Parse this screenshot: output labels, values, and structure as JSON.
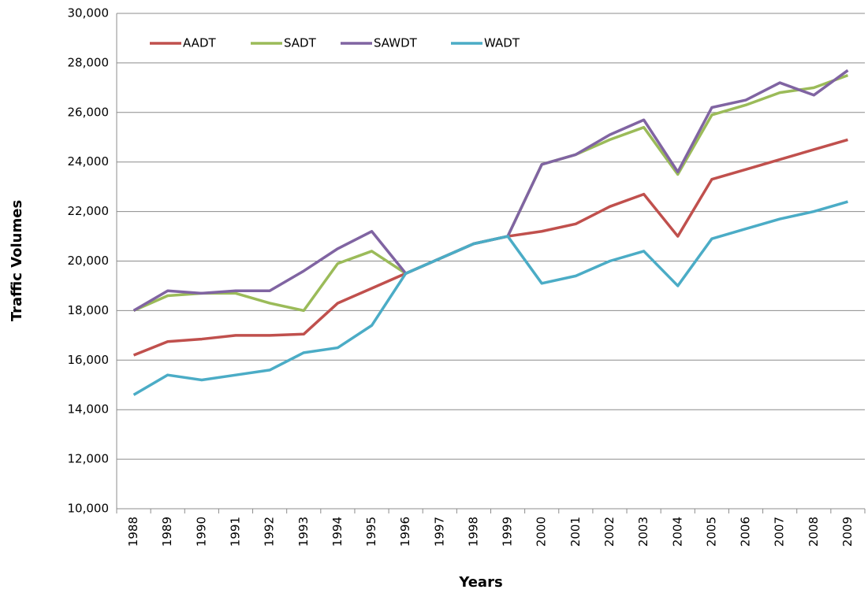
{
  "chart_data": {
    "type": "line",
    "y_label": "Traffic Volumes",
    "x_label": "Years",
    "categories": [
      "1988",
      "1989",
      "1990",
      "1991",
      "1992",
      "1993",
      "1994",
      "1995",
      "1996",
      "1997",
      "1998",
      "1999",
      "2000",
      "2001",
      "2002",
      "2003",
      "2004",
      "2005",
      "2006",
      "2007",
      "2008",
      "2009"
    ],
    "series": [
      {
        "name": "AADT",
        "color": "#c0504d",
        "values": [
          16200,
          16750,
          16850,
          17000,
          17000,
          17050,
          18300,
          18900,
          19500,
          20100,
          20700,
          21000,
          21200,
          21500,
          22200,
          22700,
          21000,
          23300,
          23700,
          24100,
          24500,
          24900
        ]
      },
      {
        "name": "SADT",
        "color": "#9bbb59",
        "values": [
          18000,
          18600,
          18700,
          18700,
          18300,
          18000,
          19900,
          20400,
          19500,
          20100,
          20700,
          21000,
          23900,
          24300,
          24900,
          25400,
          23500,
          25900,
          26300,
          26800,
          27000,
          27500
        ]
      },
      {
        "name": "SAWDT",
        "color": "#8064a2",
        "values": [
          18000,
          18800,
          18700,
          18800,
          18800,
          19600,
          20500,
          21200,
          19500,
          20100,
          20700,
          21000,
          23900,
          24300,
          25100,
          25700,
          23600,
          26200,
          26500,
          27200,
          26700,
          27700
        ]
      },
      {
        "name": "WADT",
        "color": "#4bacc6",
        "values": [
          14600,
          15400,
          15200,
          15400,
          15600,
          16300,
          16500,
          17400,
          19500,
          20100,
          20700,
          21000,
          19100,
          19400,
          20000,
          20400,
          19000,
          20900,
          21300,
          21700,
          22000,
          22400
        ]
      }
    ],
    "ylim": [
      10000,
      30000
    ],
    "yticks": [
      {
        "value": 10000,
        "label": "10,000"
      },
      {
        "value": 12000,
        "label": "12,000"
      },
      {
        "value": 14000,
        "label": "14,000"
      },
      {
        "value": 16000,
        "label": "16,000"
      },
      {
        "value": 18000,
        "label": "18,000"
      },
      {
        "value": 20000,
        "label": "20,000"
      },
      {
        "value": 22000,
        "label": "22,000"
      },
      {
        "value": 24000,
        "label": "24,000"
      },
      {
        "value": 26000,
        "label": "26,000"
      },
      {
        "value": 28000,
        "label": "28,000"
      },
      {
        "value": 30000,
        "label": "30,000"
      }
    ],
    "grid": true,
    "legend": "top-left"
  }
}
